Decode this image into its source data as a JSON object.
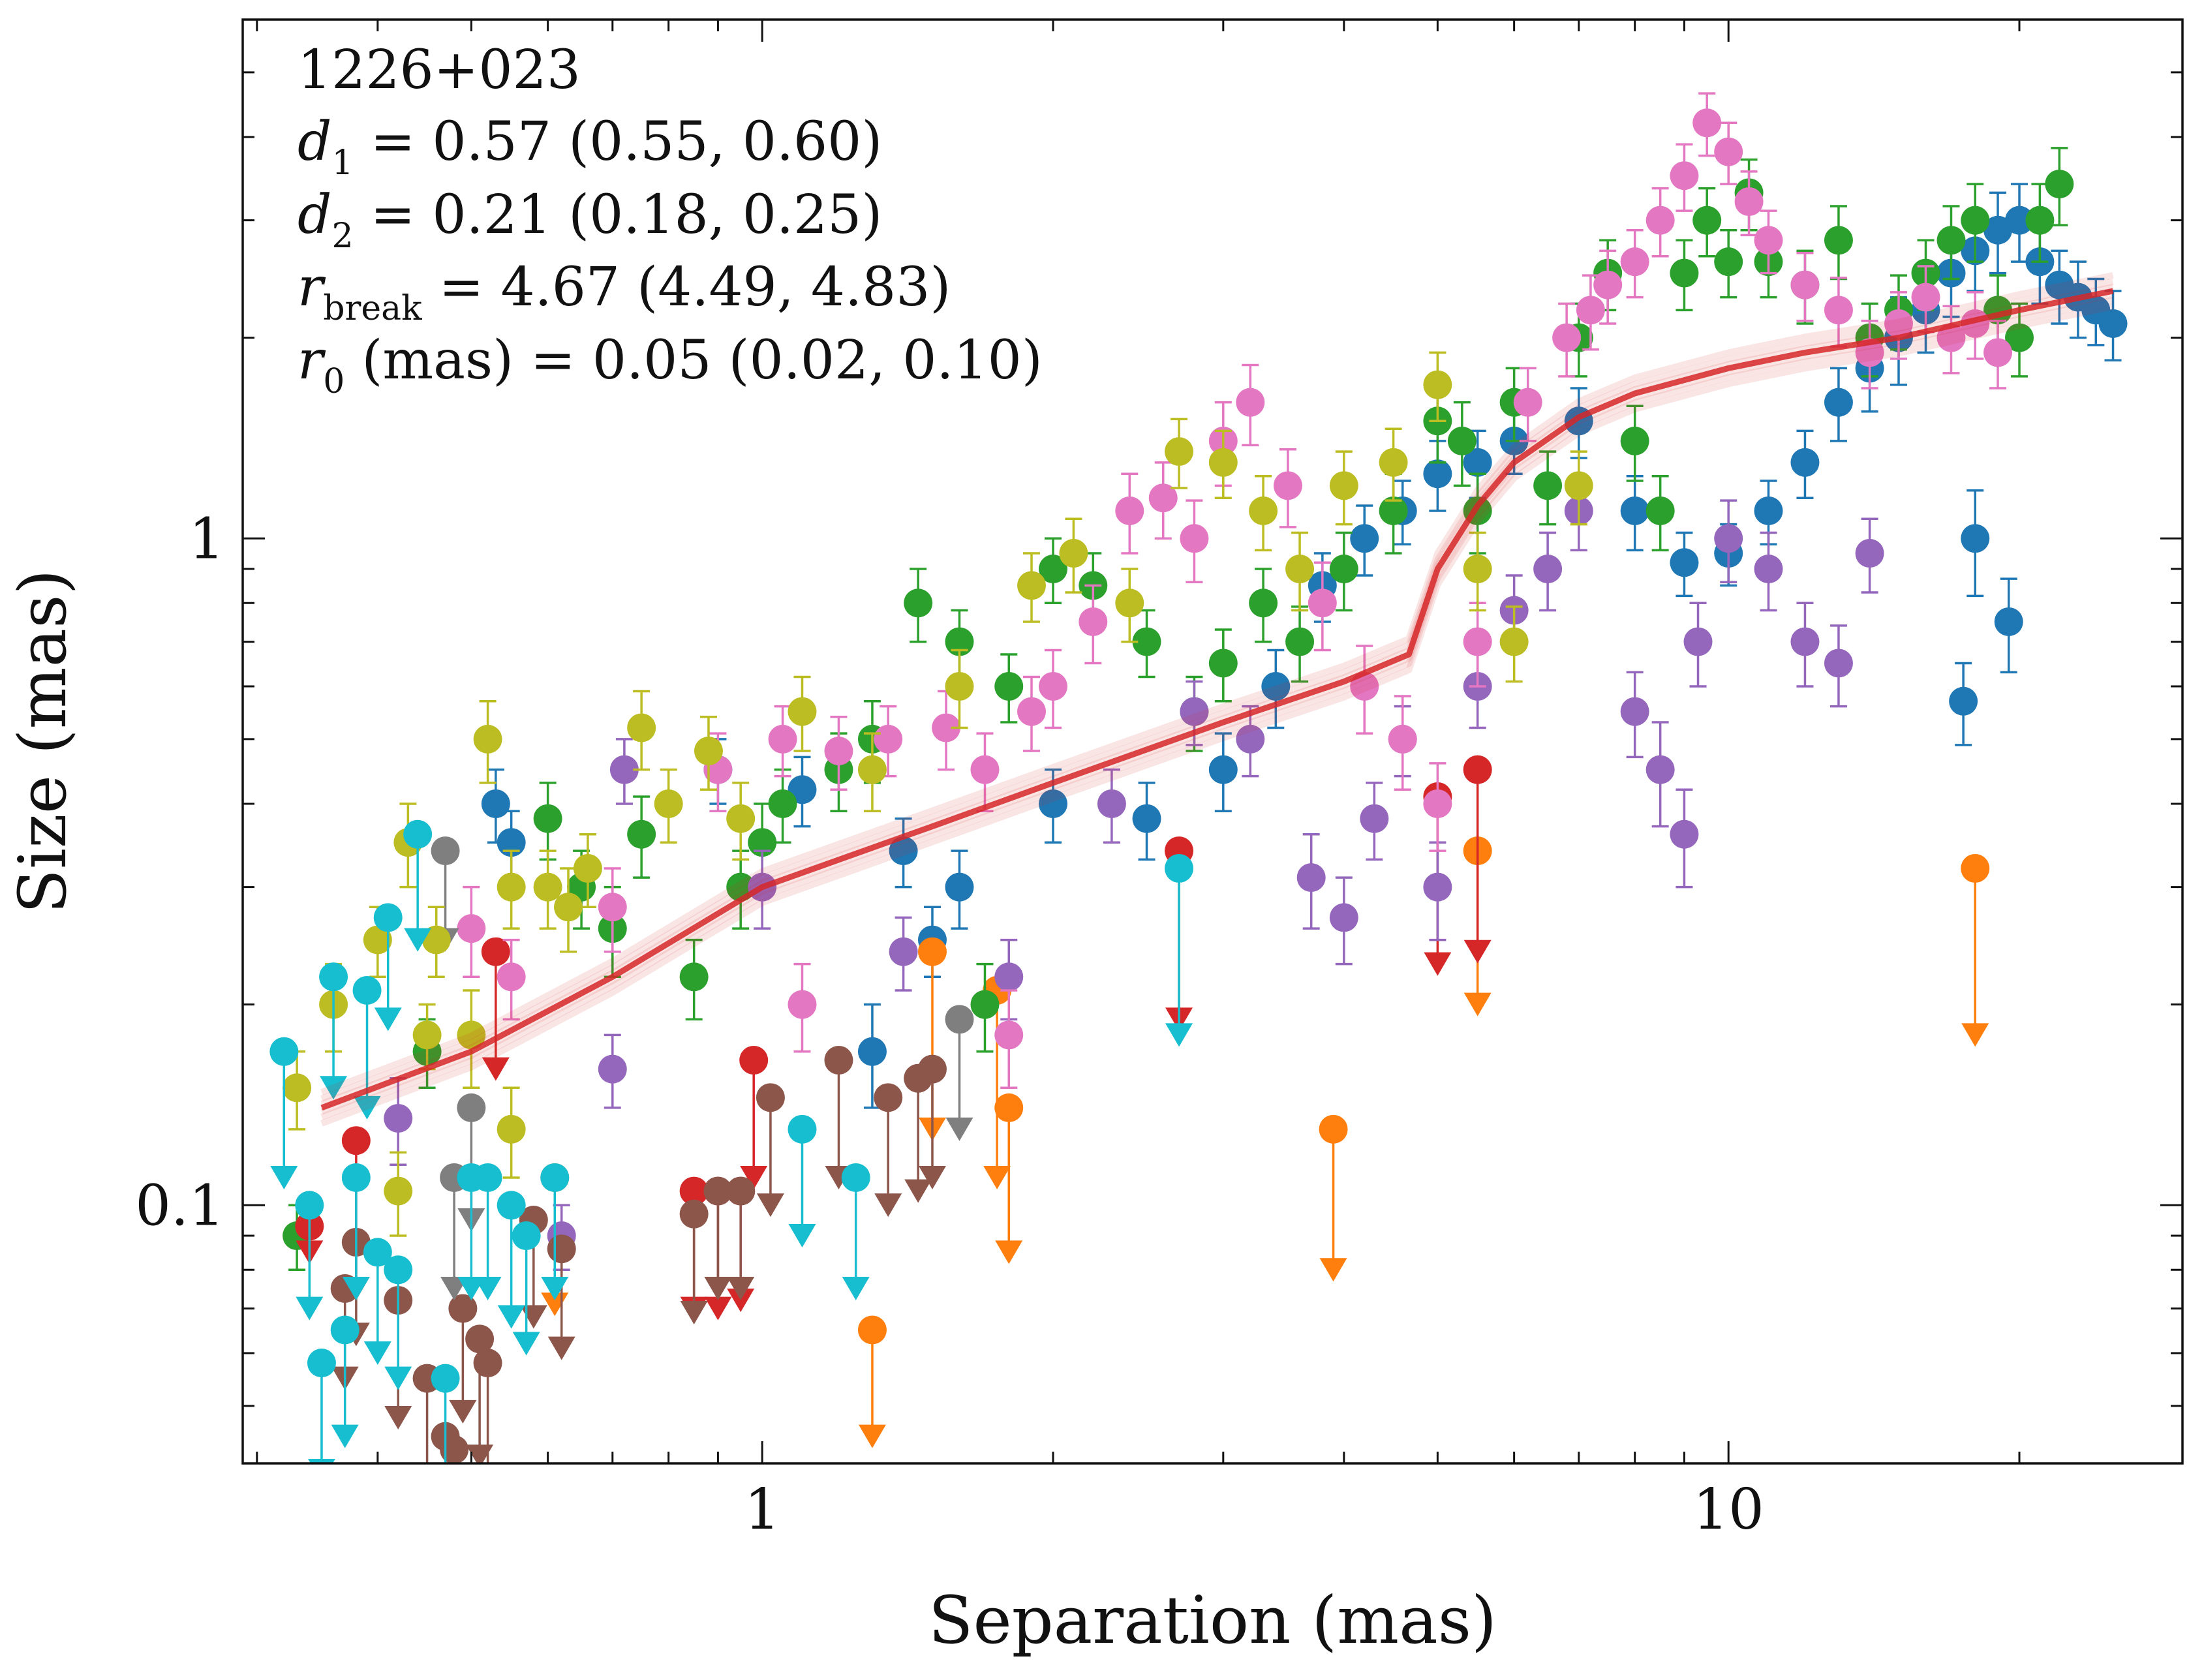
{
  "chart_data": {
    "type": "scatter",
    "title": "",
    "xlabel": "Separation (mas)",
    "ylabel": "Size (mas)",
    "xscale": "log",
    "yscale": "log",
    "xlim": [
      0.29,
      29.5
    ],
    "ylim": [
      0.041,
      6.0
    ],
    "x_ticks": [
      {
        "value": 1,
        "label": "1"
      },
      {
        "value": 10,
        "label": "10"
      }
    ],
    "y_ticks": [
      {
        "value": 0.1,
        "label": "0.1"
      },
      {
        "value": 1,
        "label": "1"
      }
    ],
    "grid": false,
    "legend": "none",
    "annotation": {
      "source": "1226+023",
      "d1": {
        "sym": "d",
        "sub": "1",
        "text": " = 0.57 (0.55, 0.60)"
      },
      "d2": {
        "sym": "d",
        "sub": "2",
        "text": " = 0.21 (0.18, 0.25)"
      },
      "rbreak": {
        "sym": "r",
        "sub": "break",
        "text": " = 4.67 (4.49, 4.83)"
      },
      "r0": {
        "sym": "r",
        "sub": "0",
        "text": " (mas) = 0.05 (0.02, 0.10)"
      }
    },
    "model": {
      "name": "broken power-law fit",
      "color": "#d62728",
      "x": [
        0.35,
        0.5,
        0.7,
        1.0,
        1.5,
        2.0,
        3.0,
        4.0,
        4.67,
        5.0,
        5.5,
        6.0,
        7.0,
        8.0,
        10.0,
        12.0,
        15.0,
        20.0,
        25.0
      ],
      "y": [
        0.14,
        0.17,
        0.22,
        0.3,
        0.37,
        0.43,
        0.53,
        0.61,
        0.67,
        0.9,
        1.12,
        1.3,
        1.52,
        1.65,
        1.8,
        1.9,
        2.0,
        2.2,
        2.35
      ]
    },
    "series": [
      {
        "name": "blue",
        "color": "#1f77b4",
        "x": [
          0.9,
          1.1,
          1.4,
          1.6,
          2.0,
          2.5,
          3.0,
          3.4,
          3.8,
          4.2,
          4.6,
          5.0,
          5.5,
          6.0,
          7.0,
          8.0,
          9.0,
          10.0,
          11.0,
          12.0,
          13.0,
          14.0,
          15.0,
          16.0,
          17.0,
          18.0,
          19.0,
          20.0,
          21.0,
          22.0,
          23.0,
          24.0,
          25.0,
          18.0,
          19.5,
          17.5,
          0.53,
          0.55,
          1.3,
          1.5
        ],
        "y": [
          0.45,
          0.42,
          0.34,
          0.3,
          0.4,
          0.38,
          0.45,
          0.6,
          0.85,
          1.0,
          1.1,
          1.25,
          1.3,
          1.4,
          1.5,
          1.1,
          0.92,
          0.95,
          1.1,
          1.3,
          1.6,
          1.8,
          2.0,
          2.2,
          2.5,
          2.7,
          2.9,
          3.0,
          2.6,
          2.4,
          2.3,
          2.2,
          2.1,
          1.0,
          0.75,
          0.57,
          0.4,
          0.35,
          0.17,
          0.25
        ],
        "yerr": [
          0.05,
          0.05,
          0.04,
          0.04,
          0.05,
          0.05,
          0.06,
          0.08,
          0.1,
          0.12,
          0.12,
          0.15,
          0.15,
          0.15,
          0.18,
          0.14,
          0.1,
          0.1,
          0.12,
          0.15,
          0.2,
          0.25,
          0.3,
          0.3,
          0.35,
          0.35,
          0.4,
          0.4,
          0.35,
          0.3,
          0.3,
          0.25,
          0.25,
          0.18,
          0.12,
          0.08,
          0.05,
          0.04,
          0.03,
          0.03
        ]
      },
      {
        "name": "orange",
        "color": "#ff7f0e",
        "x": [
          0.61,
          1.3,
          1.5,
          1.75,
          1.8,
          3.9,
          5.5,
          18.0
        ],
        "y": [
          0.11,
          0.065,
          0.24,
          0.21,
          0.14,
          0.13,
          0.34,
          0.32
        ],
        "yerr": [
          0.01,
          0.01,
          0.02,
          0.02,
          0.02,
          0.02,
          0.02,
          0.02
        ],
        "upper_limit_to": [
          0.071,
          0.045,
          0.13,
          0.11,
          0.085,
          0.08,
          0.2,
          0.18
        ]
      },
      {
        "name": "green",
        "color": "#2ca02c",
        "x": [
          0.33,
          0.45,
          0.6,
          0.65,
          0.75,
          0.85,
          0.95,
          1.05,
          1.2,
          1.3,
          1.45,
          1.6,
          1.8,
          2.0,
          2.2,
          2.5,
          2.8,
          3.0,
          3.3,
          3.6,
          4.0,
          4.5,
          5.0,
          5.3,
          5.5,
          6.0,
          6.5,
          7.0,
          7.5,
          8.0,
          8.5,
          9.0,
          9.5,
          10.0,
          10.5,
          11.0,
          12.0,
          13.0,
          14.0,
          15.0,
          16.0,
          17.0,
          18.0,
          19.0,
          20.0,
          21.0,
          22.0,
          0.7,
          1.0,
          1.7
        ],
        "y": [
          0.09,
          0.17,
          0.38,
          0.3,
          0.36,
          0.22,
          0.3,
          0.4,
          0.45,
          0.5,
          0.8,
          0.7,
          0.6,
          0.9,
          0.85,
          0.7,
          0.55,
          0.65,
          0.8,
          0.7,
          0.9,
          1.1,
          1.5,
          1.4,
          1.1,
          1.6,
          1.2,
          2.0,
          2.5,
          1.4,
          1.1,
          2.5,
          3.0,
          2.6,
          3.3,
          2.6,
          2.4,
          2.8,
          2.0,
          2.2,
          2.5,
          2.8,
          3.0,
          2.2,
          2.0,
          3.0,
          3.4,
          0.26,
          0.35,
          0.2
        ],
        "yerr": [
          0.01,
          0.02,
          0.05,
          0.04,
          0.05,
          0.03,
          0.04,
          0.05,
          0.06,
          0.07,
          0.1,
          0.08,
          0.07,
          0.1,
          0.1,
          0.08,
          0.07,
          0.08,
          0.1,
          0.09,
          0.12,
          0.15,
          0.2,
          0.2,
          0.15,
          0.2,
          0.15,
          0.25,
          0.3,
          0.18,
          0.14,
          0.3,
          0.35,
          0.3,
          0.4,
          0.3,
          0.3,
          0.35,
          0.25,
          0.28,
          0.3,
          0.35,
          0.4,
          0.28,
          0.25,
          0.4,
          0.45,
          0.04,
          0.05,
          0.03
        ]
      },
      {
        "name": "red",
        "color": "#d62728",
        "x": [
          0.34,
          0.38,
          0.53,
          0.85,
          0.9,
          0.95,
          0.98,
          2.7,
          5.0,
          5.5
        ],
        "y": [
          0.093,
          0.125,
          0.24,
          0.105,
          0.105,
          0.105,
          0.165,
          0.34,
          0.41,
          0.45
        ],
        "yerr": [
          0.01,
          0.01,
          0.02,
          0.01,
          0.01,
          0.01,
          0.02,
          0.02,
          0.02,
          0.02
        ],
        "upper_limit_to": [
          0.085,
          0.075,
          0.16,
          0.07,
          0.07,
          0.072,
          0.11,
          0.19,
          0.23,
          0.24
        ]
      },
      {
        "name": "purple",
        "color": "#9467bd",
        "x": [
          0.42,
          0.7,
          0.72,
          1.0,
          1.4,
          1.8,
          2.3,
          2.8,
          3.2,
          3.7,
          4.0,
          4.3,
          4.6,
          5.0,
          5.5,
          6.0,
          6.5,
          7.0,
          8.0,
          8.5,
          9.0,
          9.3,
          10.0,
          11.0,
          12.0,
          13.0,
          14.0,
          0.62
        ],
        "y": [
          0.135,
          0.16,
          0.45,
          0.3,
          0.24,
          0.22,
          0.4,
          0.55,
          0.5,
          0.31,
          0.27,
          0.38,
          0.5,
          0.3,
          0.6,
          0.78,
          0.9,
          1.1,
          0.55,
          0.45,
          0.36,
          0.7,
          1.0,
          0.9,
          0.7,
          0.65,
          0.95,
          0.09
        ],
        "yerr": [
          0.02,
          0.02,
          0.05,
          0.04,
          0.03,
          0.03,
          0.05,
          0.06,
          0.06,
          0.05,
          0.04,
          0.05,
          0.06,
          0.05,
          0.08,
          0.1,
          0.12,
          0.14,
          0.08,
          0.08,
          0.06,
          0.1,
          0.14,
          0.12,
          0.1,
          0.09,
          0.12,
          0.01
        ]
      },
      {
        "name": "brown",
        "color": "#8c564b",
        "x": [
          0.37,
          0.38,
          0.42,
          0.45,
          0.49,
          0.51,
          0.52,
          0.58,
          0.62,
          0.85,
          0.9,
          0.95,
          1.02,
          1.2,
          1.35,
          1.45,
          1.5,
          0.47,
          0.48
        ],
        "y": [
          0.075,
          0.088,
          0.072,
          0.055,
          0.07,
          0.063,
          0.058,
          0.095,
          0.086,
          0.097,
          0.105,
          0.105,
          0.145,
          0.165,
          0.145,
          0.155,
          0.16,
          0.045,
          0.043
        ],
        "yerr": [
          0.01,
          0.01,
          0.01,
          0.01,
          0.01,
          0.01,
          0.01,
          0.01,
          0.01,
          0.01,
          0.01,
          0.01,
          0.01,
          0.01,
          0.01,
          0.01,
          0.01,
          0.005,
          0.005
        ],
        "upper_limit_to": [
          0.055,
          0.064,
          0.048,
          0.035,
          0.049,
          0.042,
          0.038,
          0.068,
          0.061,
          0.069,
          0.075,
          0.075,
          0.1,
          0.11,
          0.1,
          0.105,
          0.11,
          0.03,
          0.03
        ]
      },
      {
        "name": "pink",
        "color": "#e377c2",
        "x": [
          0.5,
          0.55,
          0.7,
          0.9,
          1.05,
          1.2,
          1.35,
          1.55,
          1.7,
          1.9,
          2.0,
          2.2,
          2.4,
          2.6,
          2.8,
          3.0,
          3.2,
          3.5,
          3.8,
          4.2,
          4.6,
          5.0,
          5.5,
          6.2,
          6.8,
          7.2,
          7.5,
          8.0,
          8.5,
          9.0,
          9.5,
          10.0,
          10.5,
          11.0,
          12.0,
          13.0,
          14.0,
          15.0,
          16.0,
          17.0,
          18.0,
          19.0,
          1.1,
          1.8
        ],
        "y": [
          0.26,
          0.22,
          0.28,
          0.45,
          0.5,
          0.48,
          0.5,
          0.52,
          0.45,
          0.55,
          0.6,
          0.75,
          1.1,
          1.15,
          1.0,
          1.4,
          1.6,
          1.2,
          0.8,
          0.6,
          0.5,
          0.4,
          0.7,
          1.6,
          2.0,
          2.2,
          2.4,
          2.6,
          3.0,
          3.5,
          4.2,
          3.8,
          3.2,
          2.8,
          2.4,
          2.2,
          1.9,
          2.1,
          2.3,
          2.0,
          2.1,
          1.9,
          0.2,
          0.18
        ],
        "yerr": [
          0.04,
          0.03,
          0.04,
          0.06,
          0.06,
          0.06,
          0.06,
          0.07,
          0.06,
          0.07,
          0.08,
          0.1,
          0.15,
          0.15,
          0.14,
          0.2,
          0.22,
          0.16,
          0.12,
          0.09,
          0.08,
          0.06,
          0.1,
          0.2,
          0.25,
          0.28,
          0.3,
          0.3,
          0.35,
          0.4,
          0.45,
          0.4,
          0.35,
          0.3,
          0.28,
          0.26,
          0.22,
          0.24,
          0.26,
          0.23,
          0.24,
          0.22,
          0.03,
          0.03
        ]
      },
      {
        "name": "gray",
        "color": "#7f7f7f",
        "x": [
          0.47,
          0.48,
          0.5,
          1.6
        ],
        "y": [
          0.34,
          0.11,
          0.14,
          0.19
        ],
        "yerr": [
          0.03,
          0.01,
          0.02,
          0.02
        ],
        "upper_limit_to": [
          0.25,
          0.075,
          0.095,
          0.13
        ]
      },
      {
        "name": "olive",
        "color": "#bcbd22",
        "x": [
          0.33,
          0.36,
          0.4,
          0.43,
          0.46,
          0.5,
          0.52,
          0.55,
          0.6,
          0.63,
          0.66,
          0.75,
          0.8,
          0.88,
          0.95,
          1.1,
          1.3,
          1.6,
          1.9,
          2.1,
          2.4,
          2.7,
          3.0,
          3.3,
          3.6,
          4.0,
          4.5,
          5.0,
          5.5,
          6.0,
          7.0,
          0.42,
          0.55,
          0.45
        ],
        "y": [
          0.15,
          0.2,
          0.25,
          0.35,
          0.25,
          0.18,
          0.5,
          0.3,
          0.3,
          0.28,
          0.32,
          0.52,
          0.4,
          0.48,
          0.38,
          0.55,
          0.45,
          0.6,
          0.85,
          0.95,
          0.8,
          1.35,
          1.3,
          1.1,
          0.9,
          1.2,
          1.3,
          1.7,
          0.9,
          0.7,
          1.2,
          0.105,
          0.13,
          0.18
        ],
        "yerr": [
          0.02,
          0.03,
          0.03,
          0.05,
          0.03,
          0.03,
          0.07,
          0.04,
          0.04,
          0.04,
          0.04,
          0.07,
          0.05,
          0.06,
          0.05,
          0.07,
          0.06,
          0.08,
          0.1,
          0.12,
          0.1,
          0.16,
          0.15,
          0.14,
          0.12,
          0.15,
          0.16,
          0.2,
          0.12,
          0.09,
          0.15,
          0.015,
          0.02,
          0.02
        ]
      },
      {
        "name": "cyan",
        "color": "#17becf",
        "x": [
          0.32,
          0.35,
          0.37,
          0.38,
          0.39,
          0.4,
          0.41,
          0.42,
          0.44,
          0.47,
          0.5,
          0.52,
          0.55,
          0.57,
          0.61,
          1.1,
          1.25,
          0.34,
          0.36,
          2.7
        ],
        "y": [
          0.17,
          0.058,
          0.065,
          0.11,
          0.21,
          0.085,
          0.27,
          0.08,
          0.36,
          0.055,
          0.11,
          0.11,
          0.1,
          0.09,
          0.11,
          0.13,
          0.11,
          0.1,
          0.22,
          0.32
        ],
        "yerr": [
          0.02,
          0.008,
          0.008,
          0.012,
          0.02,
          0.01,
          0.025,
          0.01,
          0.03,
          0.008,
          0.012,
          0.012,
          0.012,
          0.01,
          0.012,
          0.015,
          0.012,
          0.012,
          0.02,
          0.02
        ],
        "upper_limit_to": [
          0.11,
          0.04,
          0.045,
          0.075,
          0.14,
          0.06,
          0.19,
          0.055,
          0.25,
          0.038,
          0.075,
          0.075,
          0.068,
          0.062,
          0.075,
          0.09,
          0.075,
          0.07,
          0.15,
          0.18
        ]
      }
    ]
  }
}
